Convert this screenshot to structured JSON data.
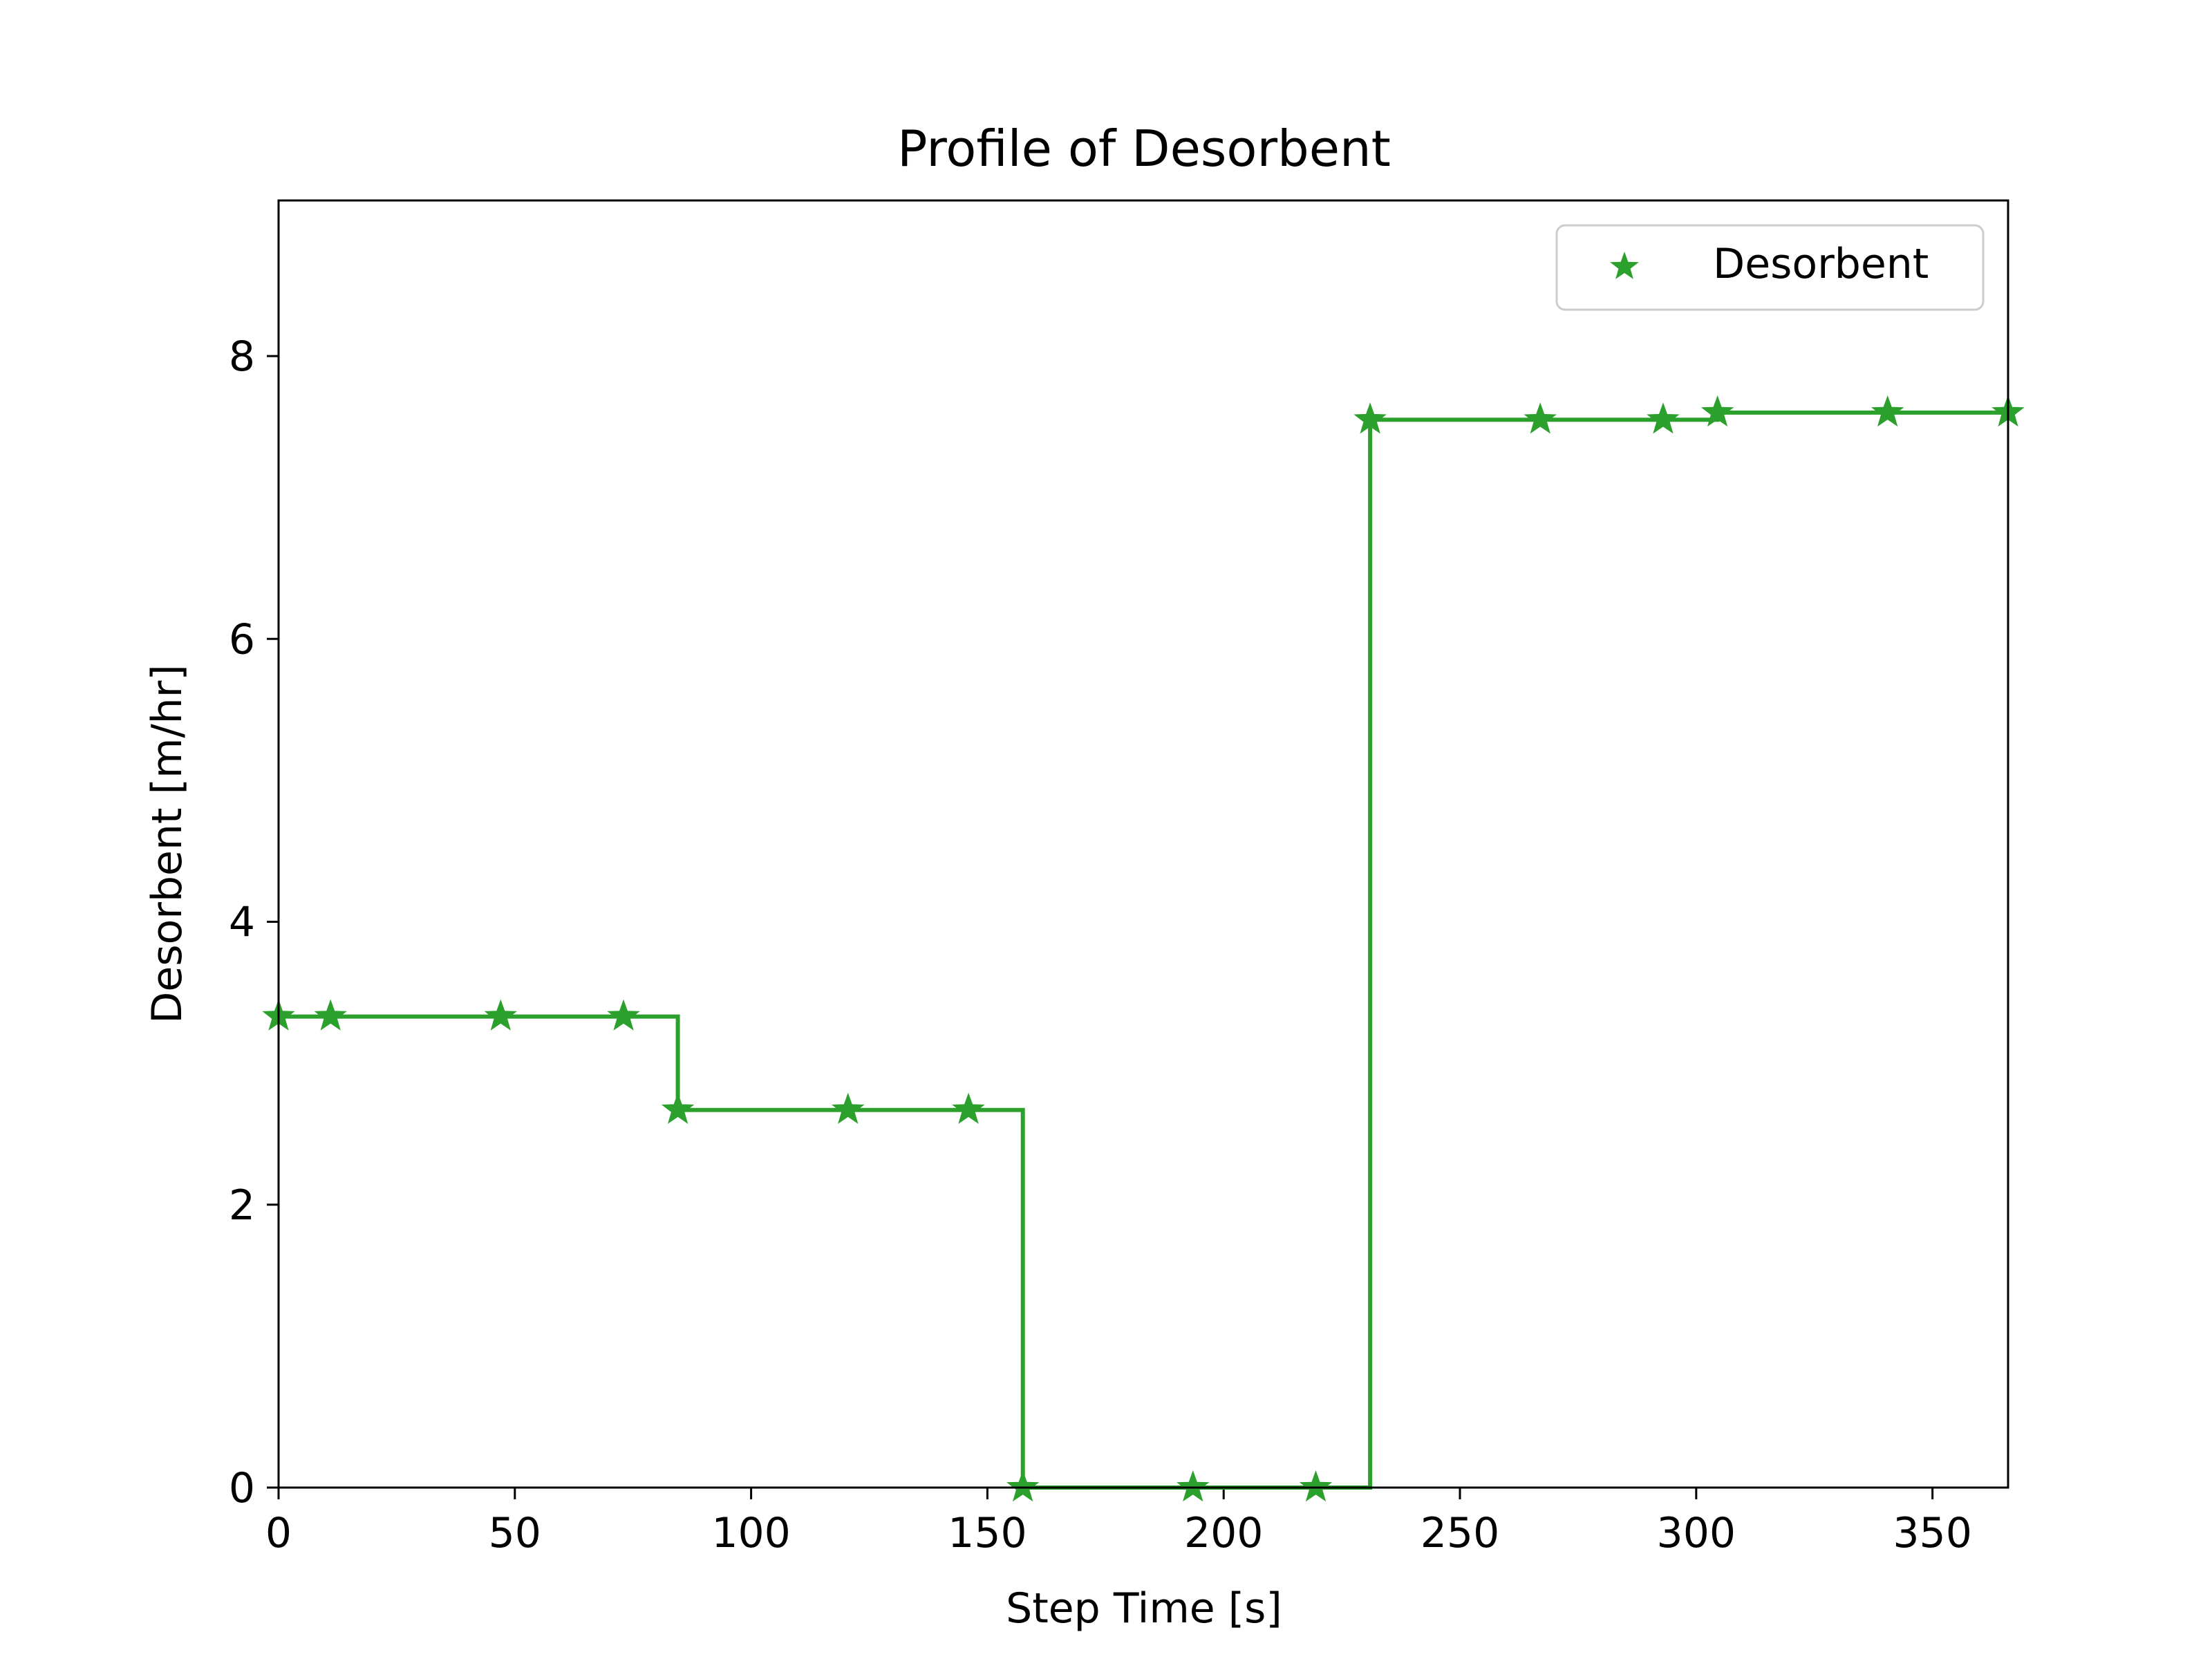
{
  "chart_data": {
    "type": "line",
    "title": "Profile of Desorbent",
    "xlabel": "Step Time [s]",
    "ylabel": "Desorbent [m/hr]",
    "xlim": [
      0,
      366
    ],
    "ylim": [
      0,
      9.1
    ],
    "xticks": [
      "0",
      "50",
      "100",
      "150",
      "200",
      "250",
      "300",
      "350"
    ],
    "xtick_values": [
      0,
      50,
      100,
      150,
      200,
      250,
      300,
      350
    ],
    "yticks": [
      "0",
      "2",
      "4",
      "6",
      "8"
    ],
    "ytick_values": [
      0,
      2,
      4,
      6,
      8
    ],
    "grid": false,
    "legend_position": "top-right",
    "series": [
      {
        "name": "Desorbent",
        "color": "#2ca02c",
        "marker": "star",
        "drawstyle": "steps-post",
        "x": [
          0,
          11,
          47,
          73,
          84.5,
          120.5,
          146,
          157.5,
          193.5,
          219.5,
          231,
          267,
          293,
          304.5,
          340.5,
          366
        ],
        "y": [
          3.33,
          3.33,
          3.33,
          3.33,
          2.67,
          2.67,
          2.67,
          0.0,
          0.0,
          0.0,
          7.55,
          7.55,
          7.55,
          7.6,
          7.6,
          7.6
        ]
      }
    ]
  }
}
